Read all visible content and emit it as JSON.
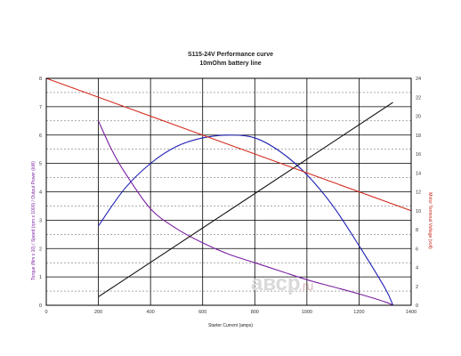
{
  "chart_data": {
    "type": "line",
    "title": "S115-24V Performance  curve",
    "subtitle": "10mOhm battery line",
    "xlabel": "Starter Current (amps)",
    "ylabel_left": "Torque (Nm x 10) / Speed (rpm x 1000) / Output Power (kW)",
    "ylabel_right": "Motor Terminal Voltage (volt)",
    "xlim": [
      0,
      1400
    ],
    "ylim_left": [
      0,
      8
    ],
    "ylim_right": [
      0,
      24
    ],
    "x_ticks": [
      "0",
      "200",
      "400",
      "600",
      "800",
      "1000",
      "1200",
      "1400"
    ],
    "y_ticks_left": [
      "0",
      "1",
      "2",
      "3",
      "4",
      "5",
      "6",
      "7",
      "8"
    ],
    "y_ticks_right": [
      "0",
      "2",
      "4",
      "6",
      "8",
      "10",
      "12",
      "14",
      "16",
      "18",
      "20",
      "22",
      "24"
    ],
    "grid": true,
    "series": [
      {
        "axis": "left",
        "color": "#1f1fb4",
        "points": [
          [
            200,
            2.8
          ],
          [
            300,
            4.1
          ],
          [
            400,
            5.0
          ],
          [
            500,
            5.6
          ],
          [
            600,
            5.9
          ],
          [
            700,
            6.0
          ],
          [
            800,
            5.9
          ],
          [
            900,
            5.4
          ],
          [
            1000,
            4.6
          ],
          [
            1100,
            3.5
          ],
          [
            1200,
            2.1
          ],
          [
            1300,
            0.6
          ],
          [
            1330,
            0.0
          ]
        ]
      },
      {
        "axis": "left",
        "color": "#7a1fa2",
        "points": [
          [
            200,
            6.5
          ],
          [
            250,
            5.5
          ],
          [
            300,
            4.7
          ],
          [
            400,
            3.4
          ],
          [
            500,
            2.7
          ],
          [
            600,
            2.2
          ],
          [
            700,
            1.8
          ],
          [
            800,
            1.5
          ],
          [
            900,
            1.2
          ],
          [
            1000,
            0.9
          ],
          [
            1100,
            0.65
          ],
          [
            1200,
            0.4
          ],
          [
            1300,
            0.12
          ],
          [
            1330,
            0.0
          ]
        ]
      },
      {
        "axis": "left",
        "color": "#111111",
        "points": [
          [
            200,
            0.3
          ],
          [
            1330,
            7.15
          ]
        ]
      },
      {
        "axis": "right",
        "color": "#d42b1e",
        "points": [
          [
            0,
            24.0
          ],
          [
            1400,
            10.0
          ]
        ]
      }
    ]
  },
  "watermark": {
    "text": "aвсp",
    "suffix": ".ru"
  }
}
